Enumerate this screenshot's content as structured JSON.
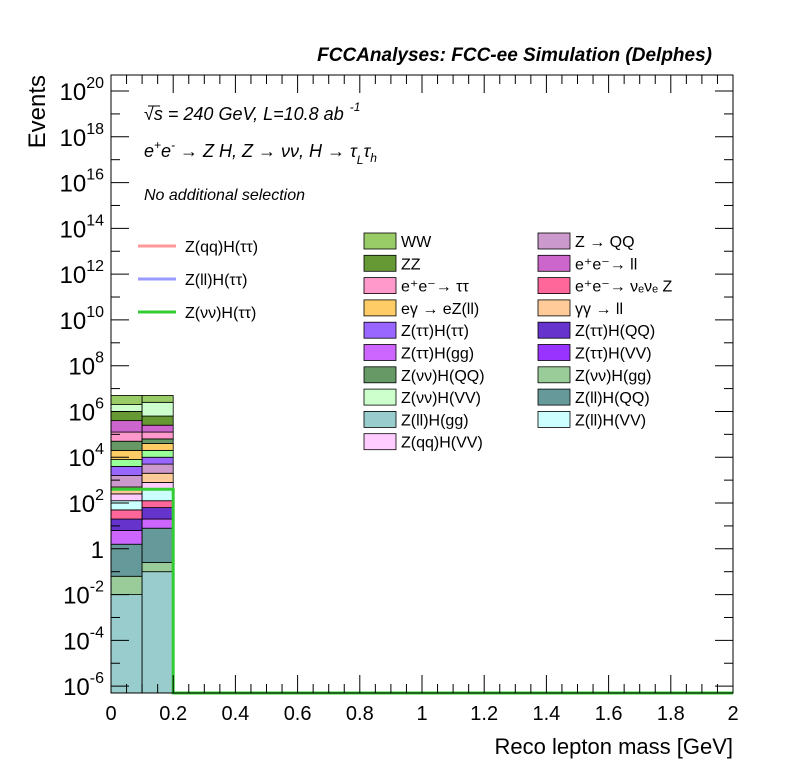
{
  "header": {
    "title": "FCCAnalyses: FCC-ee Simulation (Delphes)",
    "line1_a": "√",
    "line1_b": "s = 240 GeV, L=10.8 ab",
    "line1_sup": "-1",
    "line2_a": "e",
    "line2_sup1": "+",
    "line2_b": "e",
    "line2_sup2": "-",
    "line2_c": " → Z H, Z  → νν, H  → τ",
    "line2_sub1": "L",
    "line2_d": "τ",
    "line2_sub2": "h",
    "selection": "No additional selection"
  },
  "chart_data": {
    "type": "bar",
    "title": "FCCAnalyses: FCC-ee Simulation (Delphes)",
    "xlabel": "Reco lepton mass [GeV]",
    "ylabel": "Events",
    "xlim": [
      0,
      2
    ],
    "ylim_exponent": [
      -6.3,
      20.7
    ],
    "y_log_scale": true,
    "x_ticks": [
      "0",
      "0.2",
      "0.4",
      "0.6",
      "0.8",
      "1",
      "1.2",
      "1.4",
      "1.6",
      "1.8",
      "2"
    ],
    "y_ticks": [
      {
        "base": "10",
        "exp": "20",
        "value_exp": 20
      },
      {
        "base": "10",
        "exp": "18",
        "value_exp": 18
      },
      {
        "base": "10",
        "exp": "16",
        "value_exp": 16
      },
      {
        "base": "10",
        "exp": "14",
        "value_exp": 14
      },
      {
        "base": "10",
        "exp": "12",
        "value_exp": 12
      },
      {
        "base": "10",
        "exp": "10",
        "value_exp": 10
      },
      {
        "base": "10",
        "exp": "8",
        "value_exp": 8
      },
      {
        "base": "10",
        "exp": "6",
        "value_exp": 6
      },
      {
        "base": "10",
        "exp": "4",
        "value_exp": 4
      },
      {
        "base": "10",
        "exp": "2",
        "value_exp": 2
      },
      {
        "base": "1",
        "exp": "",
        "value_exp": 0
      },
      {
        "base": "10",
        "exp": "-2",
        "value_exp": -2
      },
      {
        "base": "10",
        "exp": "-4",
        "value_exp": -4
      },
      {
        "base": "10",
        "exp": "-6",
        "value_exp": -6
      }
    ],
    "bins": [
      [
        0,
        0.1
      ],
      [
        0.1,
        0.2
      ]
    ],
    "stack_boundaries_log10": [
      [
        -6.3,
        -2.0,
        -1.2,
        0.2,
        0.8,
        1.3,
        1.7,
        2.1,
        2.4,
        2.7,
        3.2,
        3.6,
        3.9,
        4.3,
        4.7,
        5.1,
        5.6,
        6.0,
        6.3,
        6.7
      ],
      [
        -6.3,
        -1.0,
        -0.6,
        0.9,
        1.3,
        1.8,
        2.1,
        2.6,
        2.9,
        3.3,
        3.7,
        4.0,
        4.3,
        4.6,
        4.8,
        5.1,
        5.4,
        5.8,
        6.4,
        6.7
      ]
    ],
    "stack_colors": [
      "#99cccc",
      "#99cc99",
      "#669999",
      "#cc66ff",
      "#6633cc",
      "#ff6699",
      "#ccffff",
      "#ffccff",
      "#ffcc99",
      "#cc99cc",
      "#9966ff",
      "#99ff99",
      "#ffcc66",
      "#669966",
      "#ff99cc",
      "#cc66cc",
      "#669933",
      "#ccffcc",
      "#99cc66"
    ],
    "signal_lines": [
      {
        "name": "Z(νν)H(ττ)",
        "color": "#33cc33",
        "values_log10": [
          2.6,
          2.6
        ]
      }
    ],
    "legend_lines": [
      {
        "label": "Z(qq)H(ττ)",
        "color": "#ff9999"
      },
      {
        "label": "Z(ll)H(ττ)",
        "color": "#9999ff"
      },
      {
        "label": "Z(νν)H(ττ)",
        "color": "#33cc33"
      }
    ],
    "legend_col1": [
      {
        "label": "WW",
        "color": "#99cc66"
      },
      {
        "label": "ZZ",
        "color": "#669933"
      },
      {
        "label": "e⁺e⁻→ ττ",
        "color": "#ff99cc"
      },
      {
        "label": "eγ → eZ(ll)",
        "color": "#ffcc66"
      },
      {
        "label": "Z(ττ)H(ττ)",
        "color": "#9966ff"
      },
      {
        "label": "Z(ττ)H(gg)",
        "color": "#cc66ff"
      },
      {
        "label": "Z(νν)H(QQ)",
        "color": "#669966"
      },
      {
        "label": "Z(νν)H(VV)",
        "color": "#ccffcc"
      },
      {
        "label": "Z(ll)H(gg)",
        "color": "#99cccc"
      },
      {
        "label": "Z(qq)H(VV)",
        "color": "#ffccff"
      }
    ],
    "legend_col2": [
      {
        "label": "Z → QQ",
        "color": "#cc99cc"
      },
      {
        "label": "e⁺e⁻→ ll",
        "color": "#cc66cc"
      },
      {
        "label": "e⁺e⁻→ νₑνₑ Z",
        "color": "#ff6699"
      },
      {
        "label": "γγ → ll",
        "color": "#ffcc99"
      },
      {
        "label": "Z(ττ)H(QQ)",
        "color": "#6633cc"
      },
      {
        "label": "Z(ττ)H(VV)",
        "color": "#9933ff"
      },
      {
        "label": "Z(νν)H(gg)",
        "color": "#99cc99"
      },
      {
        "label": "Z(ll)H(QQ)",
        "color": "#669999"
      },
      {
        "label": "Z(ll)H(VV)",
        "color": "#ccffff"
      }
    ]
  }
}
